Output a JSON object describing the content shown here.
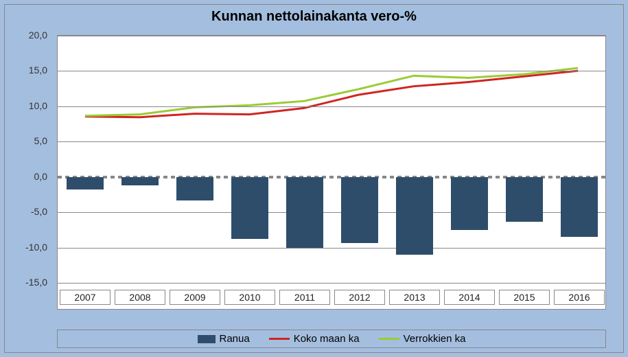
{
  "chart": {
    "type": "bar-and-line",
    "title": "Kunnan nettolainakanta vero-%",
    "title_fontsize": 20,
    "background_color": "#a4bedf",
    "plot_background": "#ffffff",
    "border_color": "#888888",
    "categories": [
      "2007",
      "2008",
      "2009",
      "2010",
      "2011",
      "2012",
      "2013",
      "2014",
      "2015",
      "2016"
    ],
    "ylim": [
      -15.0,
      20.0
    ],
    "ytick_step": 5.0,
    "yticks": [
      20.0,
      15.0,
      10.0,
      5.0,
      0.0,
      -5.0,
      -10.0,
      -15.0
    ],
    "ytick_labels": [
      "20,0",
      "15,0",
      "10,0",
      "5,0",
      "0,0",
      "-5,0",
      "-10,0",
      "-15,0"
    ],
    "grid_color": "#888888",
    "zero_line_dashed": true,
    "label_fontsize": 14,
    "plot_area_fraction_for_bars": 0.9,
    "series_bar": {
      "name": "Ranua",
      "color": "#2e4d6b",
      "bar_width": 0.68,
      "values": [
        -1.8,
        -1.2,
        -3.3,
        -8.8,
        -10.0,
        -9.4,
        -11.0,
        -7.5,
        -6.3,
        -8.5
      ]
    },
    "series_lines": [
      {
        "name": "Koko maan ka",
        "color": "#d02522",
        "line_width": 3,
        "values": [
          8.5,
          8.4,
          8.9,
          8.8,
          9.7,
          11.6,
          12.8,
          13.4,
          14.2,
          15.0
        ]
      },
      {
        "name": "Verrokkien ka",
        "color": "#99cc33",
        "line_width": 3,
        "values": [
          8.6,
          8.8,
          9.8,
          10.1,
          10.7,
          12.4,
          14.3,
          14.0,
          14.5,
          15.4
        ]
      }
    ],
    "legend": {
      "position": "bottom",
      "items": [
        "Ranua",
        "Koko maan ka",
        "Verrokkien ka"
      ]
    }
  }
}
